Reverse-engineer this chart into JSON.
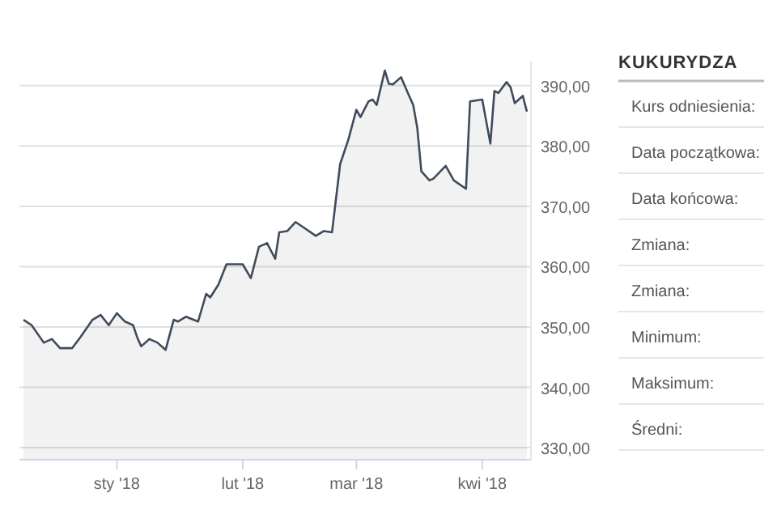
{
  "chart_data": [
    {
      "type": "area",
      "x": [
        "2017-12-09",
        "2017-12-11",
        "2017-12-14",
        "2017-12-16",
        "2017-12-18",
        "2017-12-21",
        "2017-12-23",
        "2017-12-26",
        "2017-12-28",
        "2017-12-30",
        "2018-01-01",
        "2018-01-03",
        "2018-01-05",
        "2018-01-06",
        "2018-01-07",
        "2018-01-09",
        "2018-01-11",
        "2018-01-13",
        "2018-01-15",
        "2018-01-16",
        "2018-01-18",
        "2018-01-21",
        "2018-01-23",
        "2018-01-24",
        "2018-01-26",
        "2018-01-28",
        "2018-02-01",
        "2018-02-03",
        "2018-02-05",
        "2018-02-07",
        "2018-02-09",
        "2018-02-10",
        "2018-02-12",
        "2018-02-14",
        "2018-02-16",
        "2018-02-19",
        "2018-02-21",
        "2018-02-23",
        "2018-02-25",
        "2018-02-27",
        "2018-03-01",
        "2018-03-02",
        "2018-03-04",
        "2018-03-05",
        "2018-03-06",
        "2018-03-08",
        "2018-03-09",
        "2018-03-10",
        "2018-03-12",
        "2018-03-14",
        "2018-03-15",
        "2018-03-16",
        "2018-03-17",
        "2018-03-19",
        "2018-03-20",
        "2018-03-23",
        "2018-03-25",
        "2018-03-28",
        "2018-03-29",
        "2018-04-01",
        "2018-04-03",
        "2018-04-04",
        "2018-04-05",
        "2018-04-07",
        "2018-04-08",
        "2018-04-09",
        "2018-04-11",
        "2018-04-12"
      ],
      "series": [
        {
          "color": "#404b5c",
          "values": [
            351.2,
            350.3,
            347.4,
            348,
            346.5,
            346.5,
            348.3,
            351.2,
            352,
            350.3,
            352.3,
            350.9,
            350.3,
            348.3,
            346.8,
            348,
            347.4,
            346.2,
            351.2,
            350.9,
            351.7,
            350.9,
            355.5,
            354.9,
            357,
            360.4,
            360.4,
            358.1,
            363.3,
            363.9,
            361.3,
            365.7,
            365.9,
            367.4,
            366.5,
            365.1,
            365.9,
            365.7,
            377,
            381,
            386,
            384.8,
            387.4,
            387.7,
            386.8,
            392.5,
            390.3,
            390.2,
            391.4,
            388.3,
            386.8,
            383,
            375.8,
            374.3,
            374.6,
            376.7,
            374.3,
            372.9,
            387.4,
            387.7,
            380.4,
            389.1,
            388.8,
            390.6,
            389.7,
            387.1,
            388.3,
            385.7
          ]
        }
      ],
      "xlim": [
        "2017-12-08",
        "2018-04-13"
      ],
      "ylim": [
        328,
        394
      ],
      "xticks": [
        {
          "value": "2018-01-01",
          "label": "sty '18"
        },
        {
          "value": "2018-02-01",
          "label": "lut '18"
        },
        {
          "value": "2018-03-01",
          "label": "mar '18"
        },
        {
          "value": "2018-04-01",
          "label": "kwi '18"
        }
      ],
      "yticks": [
        {
          "value": 330,
          "label": "330,00"
        },
        {
          "value": 340,
          "label": "340,00"
        },
        {
          "value": 350,
          "label": "350,00"
        },
        {
          "value": 360,
          "label": "360,00"
        },
        {
          "value": 370,
          "label": "370,00"
        },
        {
          "value": 380,
          "label": "380,00"
        },
        {
          "value": 390,
          "label": "390,00"
        }
      ],
      "grid": "y"
    },
    {
      "type": "other",
      "title": "KUKURYDZA",
      "annotations": [
        "Kurs odniesienia:",
        "Data początkowa:",
        "Data końcowa:",
        "Zmiana:",
        "Zmiana:",
        "Minimum:",
        "Maksimum:",
        "Średni:"
      ]
    }
  ]
}
